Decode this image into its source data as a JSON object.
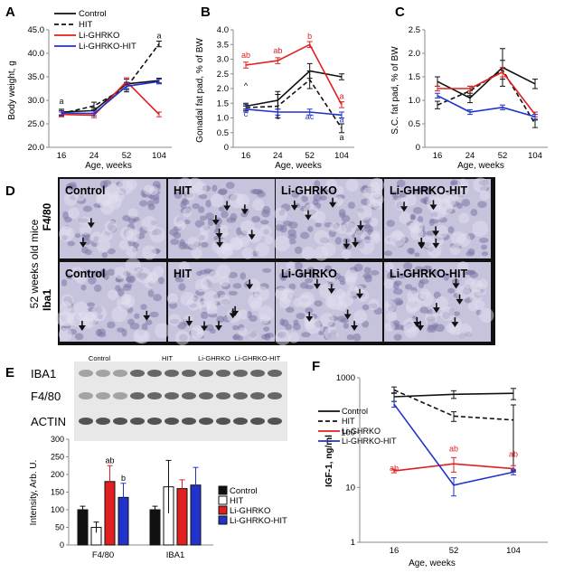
{
  "panels": {
    "A": {
      "letter": "A",
      "ylabel": "Body weight, g",
      "xlabel": "Age, weeks",
      "ylim": [
        20,
        45
      ],
      "yticks": [
        "20.0",
        "25.0",
        "30.0",
        "35.0",
        "40.0",
        "45.0"
      ],
      "xticks": [
        "16",
        "24",
        "52",
        "104"
      ],
      "legend": [
        "Control",
        "HIT",
        "Li-GHRKO",
        "Li-GHRKO-HIT"
      ]
    },
    "B": {
      "letter": "B",
      "ylabel": "Gonadal fat pad, % of BW",
      "xlabel": "Age, weeks",
      "ylim": [
        0,
        4
      ],
      "yticks": [
        "0",
        "0.5",
        "1.0",
        "1.5",
        "2.0",
        "2.5",
        "3.0",
        "3.5",
        "4.0"
      ],
      "xticks": [
        "16",
        "24",
        "52",
        "104"
      ]
    },
    "C": {
      "letter": "C",
      "ylabel": "S.C. fat pad, % of BW",
      "xlabel": "Age, weeks",
      "ylim": [
        0,
        2.5
      ],
      "yticks": [
        "0",
        "0.5",
        "1.0",
        "1.5",
        "2.0",
        "2.5"
      ],
      "xticks": [
        "16",
        "24",
        "52",
        "104"
      ]
    },
    "D": {
      "letter": "D",
      "side_label": "52 weeks old mice",
      "row_labels": [
        "F4/80",
        "Iba1"
      ],
      "tiles": [
        "Control",
        "HIT",
        "Li-GHRKO",
        "Li-GHRKO-HIT"
      ]
    },
    "E": {
      "letter": "E",
      "group_labels": [
        "Control",
        "HIT",
        "Li-GHRKO",
        "Li-GHRKO-HIT"
      ],
      "blot_labels": [
        "IBA1",
        "F4/80",
        "ACTIN"
      ],
      "ylabel": "Intensity, Arb. U.",
      "yticks": [
        "0",
        "50",
        "100",
        "150",
        "200",
        "250",
        "300"
      ],
      "legend": [
        "Control",
        "HIT",
        "Li-GHRKO",
        "Li-GHRKO-HIT"
      ]
    },
    "F": {
      "letter": "F",
      "ylabel": "IGF-1, ng/ml",
      "xlabel": "Age, weeks",
      "yticks": [
        "1",
        "10",
        "100",
        "1000"
      ],
      "xticks": [
        "16",
        "52",
        "104"
      ],
      "legend": [
        "Control",
        "HIT",
        "Li-GHRKO",
        "Li-GHRKO-HIT"
      ]
    }
  },
  "colors": {
    "control": "#111111",
    "hit": "#111111",
    "ghrko": "#e02020",
    "ghrkohit": "#2233cc"
  },
  "chart_data": [
    {
      "panel": "A",
      "type": "line",
      "title": "",
      "xlabel": "Age, weeks",
      "ylabel": "Body weight, g",
      "x": [
        "16",
        "24",
        "52",
        "104"
      ],
      "ylim": [
        20,
        45
      ],
      "series": [
        {
          "name": "Control",
          "values": [
            27.5,
            27.8,
            33.5,
            34.2
          ],
          "error": [
            0.6,
            0.6,
            1.0,
            0.5
          ],
          "style": "solid",
          "color": "#111111"
        },
        {
          "name": "HIT",
          "values": [
            27.2,
            28.8,
            32.8,
            42.0
          ],
          "error": [
            0.6,
            0.8,
            1.0,
            0.6
          ],
          "style": "dashed",
          "color": "#111111"
        },
        {
          "name": "Li-GHRKO",
          "values": [
            27.0,
            26.8,
            34.0,
            27.0
          ],
          "error": [
            0.5,
            0.5,
            0.8,
            0.5
          ],
          "style": "solid",
          "color": "#e02020"
        },
        {
          "name": "Li-GHRKO-HIT",
          "values": [
            27.3,
            27.2,
            33.0,
            34.0
          ],
          "error": [
            0.5,
            0.5,
            0.8,
            0.5
          ],
          "style": "solid",
          "color": "#2233cc"
        }
      ],
      "annotations": [
        {
          "text": "a",
          "x": "16",
          "y": 29.2
        },
        {
          "text": "a",
          "x": "104",
          "y": 43.2
        }
      ]
    },
    {
      "panel": "B",
      "type": "line",
      "title": "",
      "xlabel": "Age, weeks",
      "ylabel": "Gonadal fat pad, % of BW",
      "x": [
        "16",
        "24",
        "52",
        "104"
      ],
      "ylim": [
        0,
        4
      ],
      "series": [
        {
          "name": "Control",
          "values": [
            1.4,
            1.6,
            2.6,
            2.4
          ],
          "error": [
            0.1,
            0.3,
            0.25,
            0.1
          ],
          "style": "solid",
          "color": "#111111"
        },
        {
          "name": "HIT",
          "values": [
            1.35,
            1.4,
            2.3,
            0.65
          ],
          "error": [
            0.1,
            0.4,
            0.3,
            0.15
          ],
          "style": "dashed",
          "color": "#111111"
        },
        {
          "name": "Li-GHRKO",
          "values": [
            2.8,
            2.95,
            3.5,
            1.45
          ],
          "error": [
            0.1,
            0.1,
            0.1,
            0.1
          ],
          "style": "solid",
          "color": "#e02020"
        },
        {
          "name": "Li-GHRKO-HIT",
          "values": [
            1.3,
            1.2,
            1.2,
            1.1
          ],
          "error": [
            0.1,
            0.1,
            0.1,
            0.1
          ],
          "style": "solid",
          "color": "#2233cc"
        }
      ],
      "annotations": [
        {
          "text": "ab",
          "x": "16",
          "y": 3.05,
          "color": "#e02020"
        },
        {
          "text": "ab",
          "x": "24",
          "y": 3.2,
          "color": "#e02020"
        },
        {
          "text": "b",
          "x": "52",
          "y": 3.7,
          "color": "#e02020"
        },
        {
          "text": "a",
          "x": "104",
          "y": 1.65,
          "color": "#e02020"
        },
        {
          "text": "^",
          "x": "16",
          "y": 2.0,
          "color": "#111111"
        },
        {
          "text": "c",
          "x": "16",
          "y": 1.05,
          "color": "#2233cc"
        },
        {
          "text": "c",
          "x": "24",
          "y": 0.95,
          "color": "#2233cc"
        },
        {
          "text": "ac",
          "x": "52",
          "y": 0.95,
          "color": "#2233cc"
        },
        {
          "text": "a",
          "x": "104",
          "y": 0.85,
          "color": "#2233cc"
        },
        {
          "text": "a",
          "x": "104",
          "y": 0.25,
          "color": "#111111"
        }
      ]
    },
    {
      "panel": "C",
      "type": "line",
      "title": "",
      "xlabel": "Age, weeks",
      "ylabel": "S.C. fat pad, % of BW",
      "x": [
        "16",
        "24",
        "52",
        "104"
      ],
      "ylim": [
        0,
        2.5
      ],
      "series": [
        {
          "name": "Control",
          "values": [
            1.4,
            1.05,
            1.7,
            1.35
          ],
          "error": [
            0.1,
            0.1,
            0.4,
            0.1
          ],
          "style": "solid",
          "color": "#111111"
        },
        {
          "name": "HIT",
          "values": [
            0.9,
            1.2,
            1.65,
            0.5
          ],
          "error": [
            0.08,
            0.1,
            0.2,
            0.08
          ],
          "style": "dashed",
          "color": "#111111"
        },
        {
          "name": "Li-GHRKO",
          "values": [
            1.25,
            1.25,
            1.6,
            0.7
          ],
          "error": [
            0.05,
            0.05,
            0.1,
            0.05
          ],
          "style": "solid",
          "color": "#e02020"
        },
        {
          "name": "Li-GHRKO-HIT",
          "values": [
            1.1,
            0.75,
            0.85,
            0.65
          ],
          "error": [
            0.05,
            0.05,
            0.05,
            0.05
          ],
          "style": "solid",
          "color": "#2233cc"
        }
      ]
    },
    {
      "panel": "E",
      "type": "bar",
      "title": "",
      "ylabel": "Intensity, Arb. U.",
      "categories": [
        "F4/80",
        "IBA1"
      ],
      "ylim": [
        0,
        300
      ],
      "series": [
        {
          "name": "Control",
          "values": [
            100,
            100
          ],
          "error": [
            10,
            10
          ],
          "color": "#111111"
        },
        {
          "name": "HIT",
          "values": [
            50,
            165
          ],
          "error": [
            15,
            75
          ],
          "color": "#ffffff"
        },
        {
          "name": "Li-GHRKO",
          "values": [
            180,
            160
          ],
          "error": [
            45,
            25
          ],
          "color": "#e02020"
        },
        {
          "name": "Li-GHRKO-HIT",
          "values": [
            135,
            170
          ],
          "error": [
            40,
            50
          ],
          "color": "#2233cc"
        }
      ],
      "annotations": [
        {
          "text": "ab",
          "category": "F4/80",
          "series": "Li-GHRKO"
        },
        {
          "text": "b",
          "category": "F4/80",
          "series": "Li-GHRKO-HIT"
        }
      ]
    },
    {
      "panel": "F",
      "type": "line",
      "title": "",
      "xlabel": "Age, weeks",
      "ylabel": "IGF-1, ng/ml",
      "x": [
        "16",
        "52",
        "104"
      ],
      "yscale": "log",
      "ylim": [
        1,
        1000
      ],
      "series": [
        {
          "name": "Control",
          "values": [
            450,
            500,
            520
          ],
          "error": [
            80,
            80,
            120
          ],
          "style": "solid",
          "color": "#111111"
        },
        {
          "name": "HIT",
          "values": [
            600,
            200,
            170
          ],
          "error": [
            80,
            40,
            150
          ],
          "style": "dashed",
          "color": "#111111"
        },
        {
          "name": "Li-GHRKO",
          "values": [
            20,
            27,
            22
          ],
          "error": [
            1.5,
            8,
            3
          ],
          "style": "solid",
          "color": "#e02020"
        },
        {
          "name": "Li-GHRKO-HIT",
          "values": [
            330,
            11,
            19
          ],
          "error": [
            40,
            4,
            2
          ],
          "style": "solid",
          "color": "#2233cc"
        }
      ],
      "annotations": [
        {
          "text": "ab",
          "x": "16",
          "y": 20,
          "color": "#e02020"
        },
        {
          "text": "ab",
          "x": "52",
          "y": 45,
          "color": "#e02020"
        },
        {
          "text": "ab",
          "x": "104",
          "y": 36,
          "color": "#e02020"
        },
        {
          "text": "a",
          "x": "104",
          "y": 19,
          "color": "#2233cc"
        }
      ]
    }
  ]
}
